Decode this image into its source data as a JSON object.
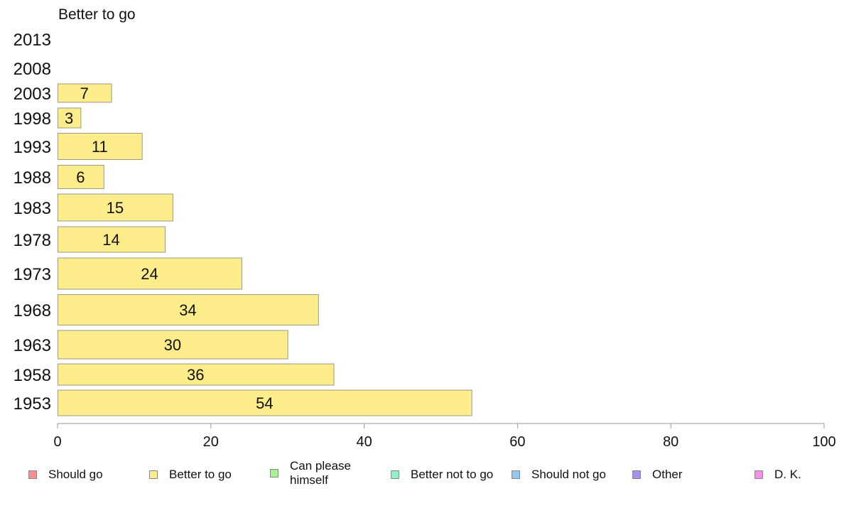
{
  "chart_data": {
    "type": "bar",
    "orientation": "horizontal",
    "title": "Better to go",
    "categories": [
      "2013",
      "2008",
      "2003",
      "1998",
      "1993",
      "1988",
      "1983",
      "1978",
      "1973",
      "1968",
      "1963",
      "1958",
      "1953"
    ],
    "values": [
      null,
      null,
      7,
      3,
      11,
      6,
      15,
      14,
      24,
      34,
      30,
      36,
      54
    ],
    "value_labels": [
      "",
      "",
      "7",
      "3",
      "11",
      "6",
      "15",
      "14",
      "24",
      "34",
      "30",
      "36",
      "54"
    ],
    "bar_color": "#fdec8a",
    "xlim": [
      0,
      100
    ],
    "xticks": [
      "0",
      "20",
      "40",
      "60",
      "80",
      "100"
    ],
    "grid": false
  },
  "legend": {
    "placement": "bottom",
    "items": [
      {
        "label": "Should go",
        "color": "#f7908c"
      },
      {
        "label": "Better to go",
        "color": "#fdec8a"
      },
      {
        "label": "Can please himself",
        "color": "#a6f291"
      },
      {
        "label": "Better not to go",
        "color": "#8ff2c8"
      },
      {
        "label": "Should not go",
        "color": "#8fc7f5"
      },
      {
        "label": "Other",
        "color": "#a98ff0"
      },
      {
        "label": "D. K.",
        "color": "#f58ee6"
      }
    ]
  }
}
